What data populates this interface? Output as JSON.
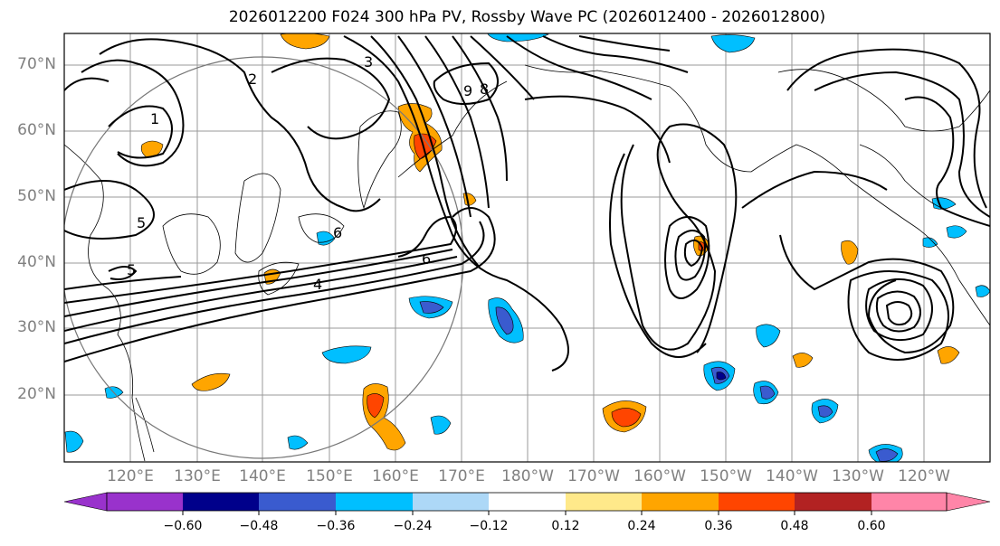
{
  "title": "2026012200 F024 300 hPa PV, Rossby Wave PC (2026012400 - 2026012800)",
  "lat_labels": [
    "70°N",
    "60°N",
    "50°N",
    "40°N",
    "30°N",
    "20°N"
  ],
  "lon_labels": [
    "120°E",
    "130°E",
    "140°E",
    "150°E",
    "160°E",
    "170°E",
    "180°W",
    "170°W",
    "160°W",
    "150°W",
    "140°W",
    "130°W",
    "120°W"
  ],
  "contour_labels": [
    "1",
    "2",
    "3",
    "5",
    "6",
    "4",
    "8",
    "9",
    "5",
    "6"
  ],
  "colorbar": {
    "ticks": [
      "−0.60",
      "−0.48",
      "−0.36",
      "−0.24",
      "−0.12",
      "0.12",
      "0.24",
      "0.36",
      "0.48",
      "0.60"
    ],
    "colors": [
      "#9932CC",
      "#00008B",
      "#3A5BCF",
      "#00BFFF",
      "#ADD8F7",
      "#FFFFFF",
      "#FFE98A",
      "#FFA500",
      "#FF4500",
      "#B22222",
      "#FF85A8"
    ]
  }
}
